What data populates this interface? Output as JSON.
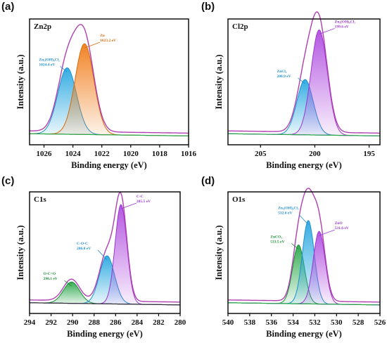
{
  "panels": [
    {
      "id": "a",
      "panel_label": "(a)",
      "title": "Zn2p",
      "xlabel": "Binding energy (eV)",
      "ylabel": "Intensity (a.u.)",
      "xlim": [
        1027,
        1016
      ],
      "xticks": [
        1026,
        1024,
        1022,
        1020,
        1018,
        1016
      ],
      "peaks": [
        {
          "center": 1024.4,
          "amp": 0.6,
          "sigma": 0.65,
          "fill": "#29a8e0",
          "stroke": "#1f8fcf"
        },
        {
          "center": 1023.2,
          "amp": 0.82,
          "sigma": 0.65,
          "fill": "#f07d1a",
          "stroke": "#d96a0a"
        }
      ],
      "envelope_color": "#b040b0",
      "baseline_color": "#2ba84a",
      "annotations": [
        {
          "lines": [
            "Zn₅(OH)₈Cl₂",
            "1024.4 eV"
          ],
          "color": "#1f8fcf",
          "peak": 0,
          "side": "left"
        },
        {
          "lines": [
            "Zn",
            "1023.2 eV"
          ],
          "color": "#d96a0a",
          "peak": 1,
          "side": "right"
        }
      ]
    },
    {
      "id": "b",
      "panel_label": "(b)",
      "title": "Cl2p",
      "xlabel": "Binding energy (eV)",
      "ylabel": "Intensity (a.u.)",
      "xlim": [
        208,
        194
      ],
      "xticks": [
        205,
        200,
        195
      ],
      "peaks": [
        {
          "center": 200.9,
          "amp": 0.5,
          "sigma": 0.75,
          "fill": "#29a8e0",
          "stroke": "#1f8fcf"
        },
        {
          "center": 199.6,
          "amp": 0.95,
          "sigma": 0.75,
          "fill": "#b04ee0",
          "stroke": "#9a36d0"
        }
      ],
      "envelope_color": "#b040b0",
      "baseline_color": "#2ba84a",
      "annotations": [
        {
          "lines": [
            "ZnCl₂",
            "200.9 eV"
          ],
          "color": "#1f8fcf",
          "peak": 0,
          "side": "left"
        },
        {
          "lines": [
            "Zn₅(OH)₈Cl₂",
            "199.6 eV"
          ],
          "color": "#9a36d0",
          "peak": 1,
          "side": "right"
        }
      ]
    },
    {
      "id": "c",
      "panel_label": "(c)",
      "title": "C1s",
      "xlabel": "Binding energy (eV)",
      "ylabel": "Intensity (a.u.)",
      "xlim": [
        294,
        280
      ],
      "xticks": [
        294,
        292,
        290,
        288,
        286,
        284,
        282,
        280
      ],
      "peaks": [
        {
          "center": 290.1,
          "amp": 0.2,
          "sigma": 0.75,
          "fill": "#2ba84a",
          "stroke": "#1c8c38"
        },
        {
          "center": 286.8,
          "amp": 0.45,
          "sigma": 0.7,
          "fill": "#29a8e0",
          "stroke": "#1f8fcf"
        },
        {
          "center": 285.5,
          "amp": 0.93,
          "sigma": 0.55,
          "fill": "#b04ee0",
          "stroke": "#9a36d0"
        }
      ],
      "envelope_color": "#b040b0",
      "baseline_color": "#333333",
      "annotations": [
        {
          "lines": [
            "O-C=O",
            "290.1 eV"
          ],
          "color": "#1c8c38",
          "peak": 0,
          "side": "left"
        },
        {
          "lines": [
            "C-O-C",
            "286.8 eV"
          ],
          "color": "#1f8fcf",
          "peak": 1,
          "side": "left"
        },
        {
          "lines": [
            "C-C",
            "285.5 eV"
          ],
          "color": "#9a36d0",
          "peak": 2,
          "side": "right"
        }
      ]
    },
    {
      "id": "d",
      "panel_label": "(d)",
      "title": "O1s",
      "xlabel": "Binding energy (eV)",
      "ylabel": "Intensity (a.u.)",
      "xlim": [
        540,
        526
      ],
      "xticks": [
        540,
        538,
        536,
        534,
        532,
        530,
        528,
        526
      ],
      "peaks": [
        {
          "center": 533.5,
          "amp": 0.55,
          "sigma": 0.55,
          "fill": "#2ba84a",
          "stroke": "#1c8c38"
        },
        {
          "center": 532.6,
          "amp": 0.78,
          "sigma": 0.55,
          "fill": "#29a8e0",
          "stroke": "#1f8fcf"
        },
        {
          "center": 531.6,
          "amp": 0.68,
          "sigma": 0.55,
          "fill": "#b04ee0",
          "stroke": "#9a36d0"
        }
      ],
      "envelope_color": "#b040b0",
      "baseline_color": "#2ba84a",
      "annotations": [
        {
          "lines": [
            "ZnCO₃",
            "533.5 eV"
          ],
          "color": "#1c8c38",
          "peak": 0,
          "side": "left"
        },
        {
          "lines": [
            "Zn₅(OH)₈Cl₂",
            "532.6 eV"
          ],
          "color": "#1f8fcf",
          "peak": 1,
          "side": "left"
        },
        {
          "lines": [
            "ZnO",
            "531.6 eV"
          ],
          "color": "#9a36d0",
          "peak": 2,
          "side": "right"
        }
      ]
    }
  ],
  "chart_data": [
    {
      "type": "area",
      "title": "Zn2p",
      "xlabel": "Binding energy (eV)",
      "ylabel": "Intensity (a.u.)",
      "xlim": [
        1027,
        1016
      ],
      "series": [
        {
          "name": "Zn₅(OH)₈Cl₂",
          "peak_x": 1024.4
        },
        {
          "name": "Zn",
          "peak_x": 1023.2
        }
      ]
    },
    {
      "type": "area",
      "title": "Cl2p",
      "xlabel": "Binding energy (eV)",
      "ylabel": "Intensity (a.u.)",
      "xlim": [
        208,
        194
      ],
      "series": [
        {
          "name": "ZnCl₂",
          "peak_x": 200.9
        },
        {
          "name": "Zn₅(OH)₈Cl₂",
          "peak_x": 199.6
        }
      ]
    },
    {
      "type": "area",
      "title": "C1s",
      "xlabel": "Binding energy (eV)",
      "ylabel": "Intensity (a.u.)",
      "xlim": [
        294,
        280
      ],
      "series": [
        {
          "name": "O-C=O",
          "peak_x": 290.1
        },
        {
          "name": "C-O-C",
          "peak_x": 286.8
        },
        {
          "name": "C-C",
          "peak_x": 285.5
        }
      ]
    },
    {
      "type": "area",
      "title": "O1s",
      "xlabel": "Binding energy (eV)",
      "ylabel": "Intensity (a.u.)",
      "xlim": [
        540,
        526
      ],
      "series": [
        {
          "name": "ZnCO₃",
          "peak_x": 533.5
        },
        {
          "name": "Zn₅(OH)₈Cl₂",
          "peak_x": 532.6
        },
        {
          "name": "ZnO",
          "peak_x": 531.6
        }
      ]
    }
  ]
}
